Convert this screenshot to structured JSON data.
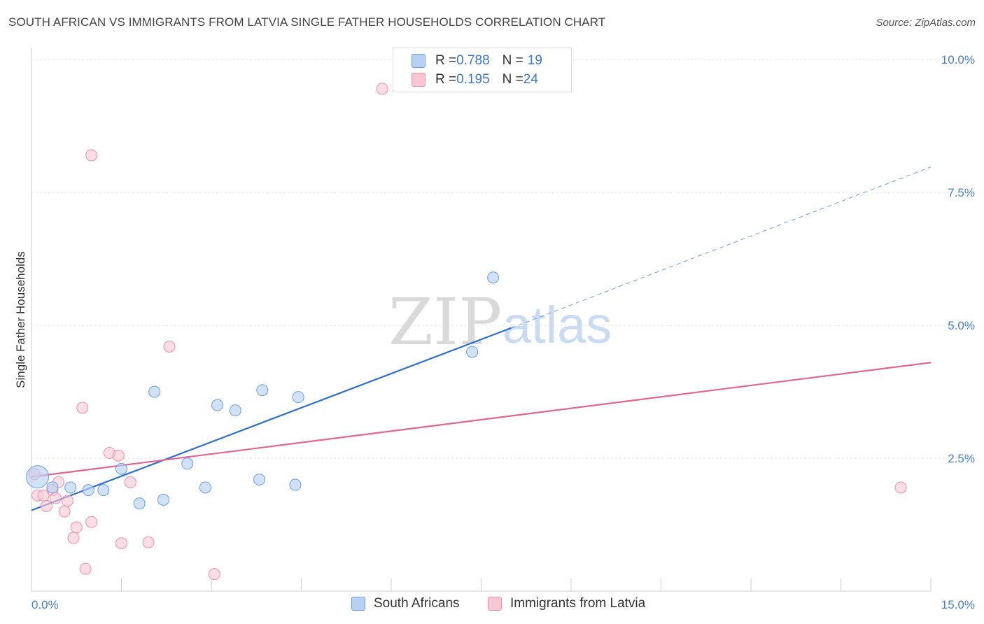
{
  "header": {
    "title": "SOUTH AFRICAN VS IMMIGRANTS FROM LATVIA SINGLE FATHER HOUSEHOLDS CORRELATION CHART",
    "source": "Source: ZipAtlas.com"
  },
  "watermark": {
    "zip": "ZIP",
    "atlas": "atlas"
  },
  "legend": {
    "rows": [
      {
        "r_label": "R = ",
        "r_value": "0.788",
        "n_label": "N = ",
        "n_value": "19"
      },
      {
        "r_label": "R = ",
        "r_value": "0.195",
        "n_label": "N = ",
        "n_value": "24"
      }
    ]
  },
  "bottom_legend": {
    "series1": "South Africans",
    "series2": "Immigrants from Latvia"
  },
  "chart_data": {
    "type": "scatter",
    "title": "SOUTH AFRICAN VS IMMIGRANTS FROM LATVIA SINGLE FATHER HOUSEHOLDS CORRELATION CHART",
    "xlabel": "",
    "ylabel": "Single Father Households",
    "xlim": [
      0,
      15
    ],
    "ylim": [
      0,
      10.2
    ],
    "x_tick_labels": [
      {
        "value": 0,
        "label": "0.0%"
      },
      {
        "value": 15,
        "label": "15.0%"
      }
    ],
    "y_tick_labels": [
      {
        "value": 2.5,
        "label": "2.5%"
      },
      {
        "value": 5.0,
        "label": "5.0%"
      },
      {
        "value": 7.5,
        "label": "7.5%"
      },
      {
        "value": 10.0,
        "label": "10.0%"
      }
    ],
    "grid": true,
    "legend_position": "top-center",
    "colors": {
      "south_africans_fill": "#b8d1f3",
      "south_africans_stroke": "#6a9fe0",
      "south_africans_line": "#2f6fd0",
      "latvia_fill": "#f9c6d4",
      "latvia_stroke": "#ec8fab",
      "latvia_line": "#e06690",
      "tick_label": "#4a7fd0"
    },
    "series": [
      {
        "name": "South Africans",
        "points": [
          {
            "x": 0.1,
            "y": 2.15,
            "big": true
          },
          {
            "x": 0.35,
            "y": 1.95
          },
          {
            "x": 0.65,
            "y": 1.95
          },
          {
            "x": 0.95,
            "y": 1.9
          },
          {
            "x": 1.2,
            "y": 1.9
          },
          {
            "x": 1.5,
            "y": 2.3
          },
          {
            "x": 1.8,
            "y": 1.65
          },
          {
            "x": 2.05,
            "y": 3.75
          },
          {
            "x": 2.2,
            "y": 1.72
          },
          {
            "x": 2.6,
            "y": 2.4
          },
          {
            "x": 2.9,
            "y": 1.95
          },
          {
            "x": 3.1,
            "y": 3.5
          },
          {
            "x": 3.4,
            "y": 3.4
          },
          {
            "x": 3.8,
            "y": 2.1
          },
          {
            "x": 3.85,
            "y": 3.78
          },
          {
            "x": 4.4,
            "y": 2.0
          },
          {
            "x": 4.45,
            "y": 3.65
          },
          {
            "x": 7.35,
            "y": 4.5
          },
          {
            "x": 7.7,
            "y": 5.9
          }
        ],
        "trend": {
          "x1": 0,
          "y1": 1.52,
          "x2": 8.0,
          "y2": 4.95,
          "dashed_to_x": 15.0,
          "dashed_to_y": 7.98
        }
      },
      {
        "name": "Immigrants from Latvia",
        "points": [
          {
            "x": 0.05,
            "y": 2.2
          },
          {
            "x": 0.1,
            "y": 1.8
          },
          {
            "x": 0.2,
            "y": 1.8
          },
          {
            "x": 0.25,
            "y": 1.6
          },
          {
            "x": 0.35,
            "y": 1.9
          },
          {
            "x": 0.4,
            "y": 1.75
          },
          {
            "x": 0.45,
            "y": 2.05
          },
          {
            "x": 0.55,
            "y": 1.5
          },
          {
            "x": 0.6,
            "y": 1.7
          },
          {
            "x": 0.7,
            "y": 1.0
          },
          {
            "x": 0.75,
            "y": 1.2
          },
          {
            "x": 0.85,
            "y": 3.45
          },
          {
            "x": 0.9,
            "y": 0.42
          },
          {
            "x": 1.0,
            "y": 1.3
          },
          {
            "x": 1.0,
            "y": 8.2
          },
          {
            "x": 1.3,
            "y": 2.6
          },
          {
            "x": 1.45,
            "y": 2.55
          },
          {
            "x": 1.5,
            "y": 0.9
          },
          {
            "x": 1.65,
            "y": 2.05
          },
          {
            "x": 1.95,
            "y": 0.92
          },
          {
            "x": 2.3,
            "y": 4.6
          },
          {
            "x": 3.05,
            "y": 0.32
          },
          {
            "x": 5.85,
            "y": 9.45
          },
          {
            "x": 14.5,
            "y": 1.95
          }
        ],
        "trend": {
          "x1": 0,
          "y1": 2.15,
          "x2": 15.0,
          "y2": 4.3
        }
      }
    ]
  }
}
